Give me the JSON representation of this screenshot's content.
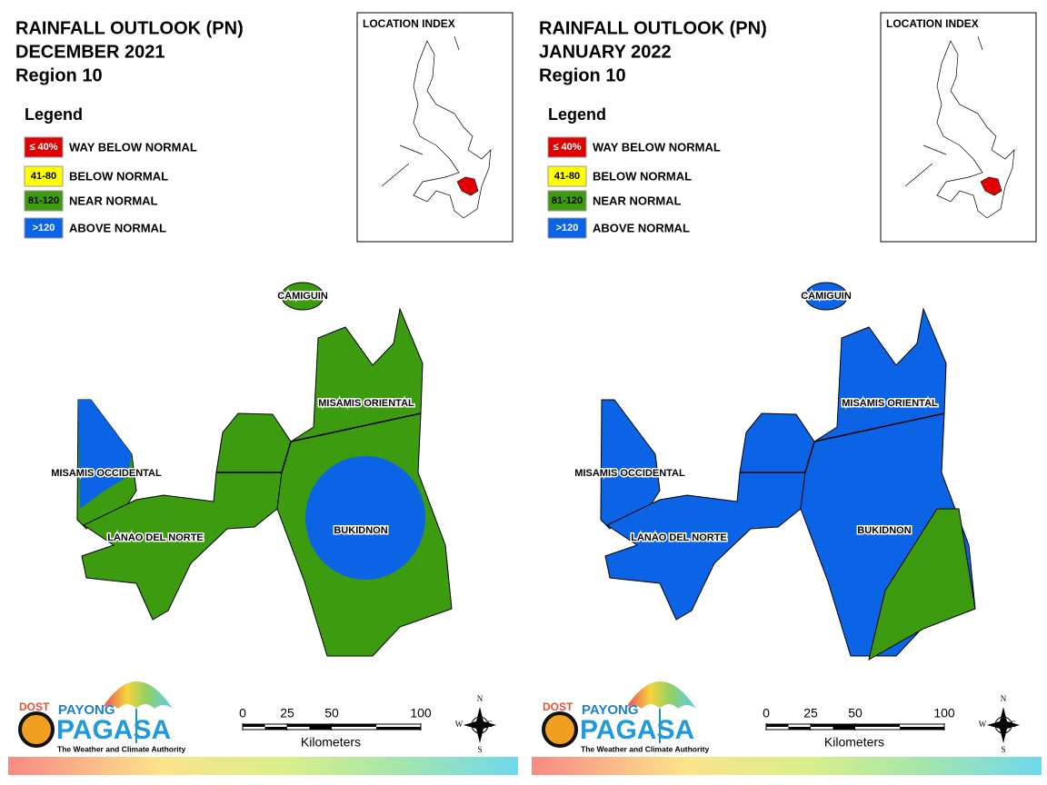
{
  "panels": [
    {
      "title": [
        "RAINFALL OUTLOOK (PN)",
        "DECEMBER 2021",
        "Region 10"
      ],
      "legend_title": "Legend",
      "legend": [
        {
          "label": "≤ 40%",
          "text": "WAY BELOW NORMAL",
          "color": "#e00000"
        },
        {
          "label": "41-80",
          "text": "BELOW NORMAL",
          "color": "#ffff00"
        },
        {
          "label": "81-120",
          "text": "NEAR NORMAL",
          "color": "#3d9b0f"
        },
        {
          "label": ">120",
          "text": "ABOVE NORMAL",
          "color": "#0b63e5"
        }
      ],
      "location_index": "LOCATION INDEX",
      "provinces": [
        "CAMIGUIN",
        "MISAMIS ORIENTAL",
        "MISAMIS OCCIDENTAL",
        "LANAO DEL NORTE",
        "BUKIDNON"
      ],
      "scale": {
        "ticks": [
          0,
          25,
          50,
          100
        ],
        "unit": "Kilometers"
      },
      "compass": [
        "N",
        "E",
        "S",
        "W"
      ],
      "logo": {
        "dost": "DOST",
        "payong": "PAYONG",
        "pagasa": "PAGASA",
        "tagline": "The Weather and Climate Authority"
      }
    },
    {
      "title": [
        "RAINFALL OUTLOOK (PN)",
        "JANUARY 2022",
        "Region 10"
      ],
      "legend_title": "Legend",
      "legend": [
        {
          "label": "≤ 40%",
          "text": "WAY BELOW NORMAL",
          "color": "#e00000"
        },
        {
          "label": "41-80",
          "text": "BELOW NORMAL",
          "color": "#ffff00"
        },
        {
          "label": "81-120",
          "text": "NEAR NORMAL",
          "color": "#3d9b0f"
        },
        {
          "label": ">120",
          "text": "ABOVE NORMAL",
          "color": "#0b63e5"
        }
      ],
      "location_index": "LOCATION INDEX",
      "provinces": [
        "CAMIGUIN",
        "MISAMIS ORIENTAL",
        "MISAMIS OCCIDENTAL",
        "LANAO DEL NORTE",
        "BUKIDNON"
      ],
      "scale": {
        "ticks": [
          0,
          25,
          50,
          100
        ],
        "unit": "Kilometers"
      },
      "compass": [
        "N",
        "E",
        "S",
        "W"
      ],
      "logo": {
        "dost": "DOST",
        "payong": "PAYONG",
        "pagasa": "PAGASA",
        "tagline": "The Weather and Climate Authority"
      }
    }
  ]
}
